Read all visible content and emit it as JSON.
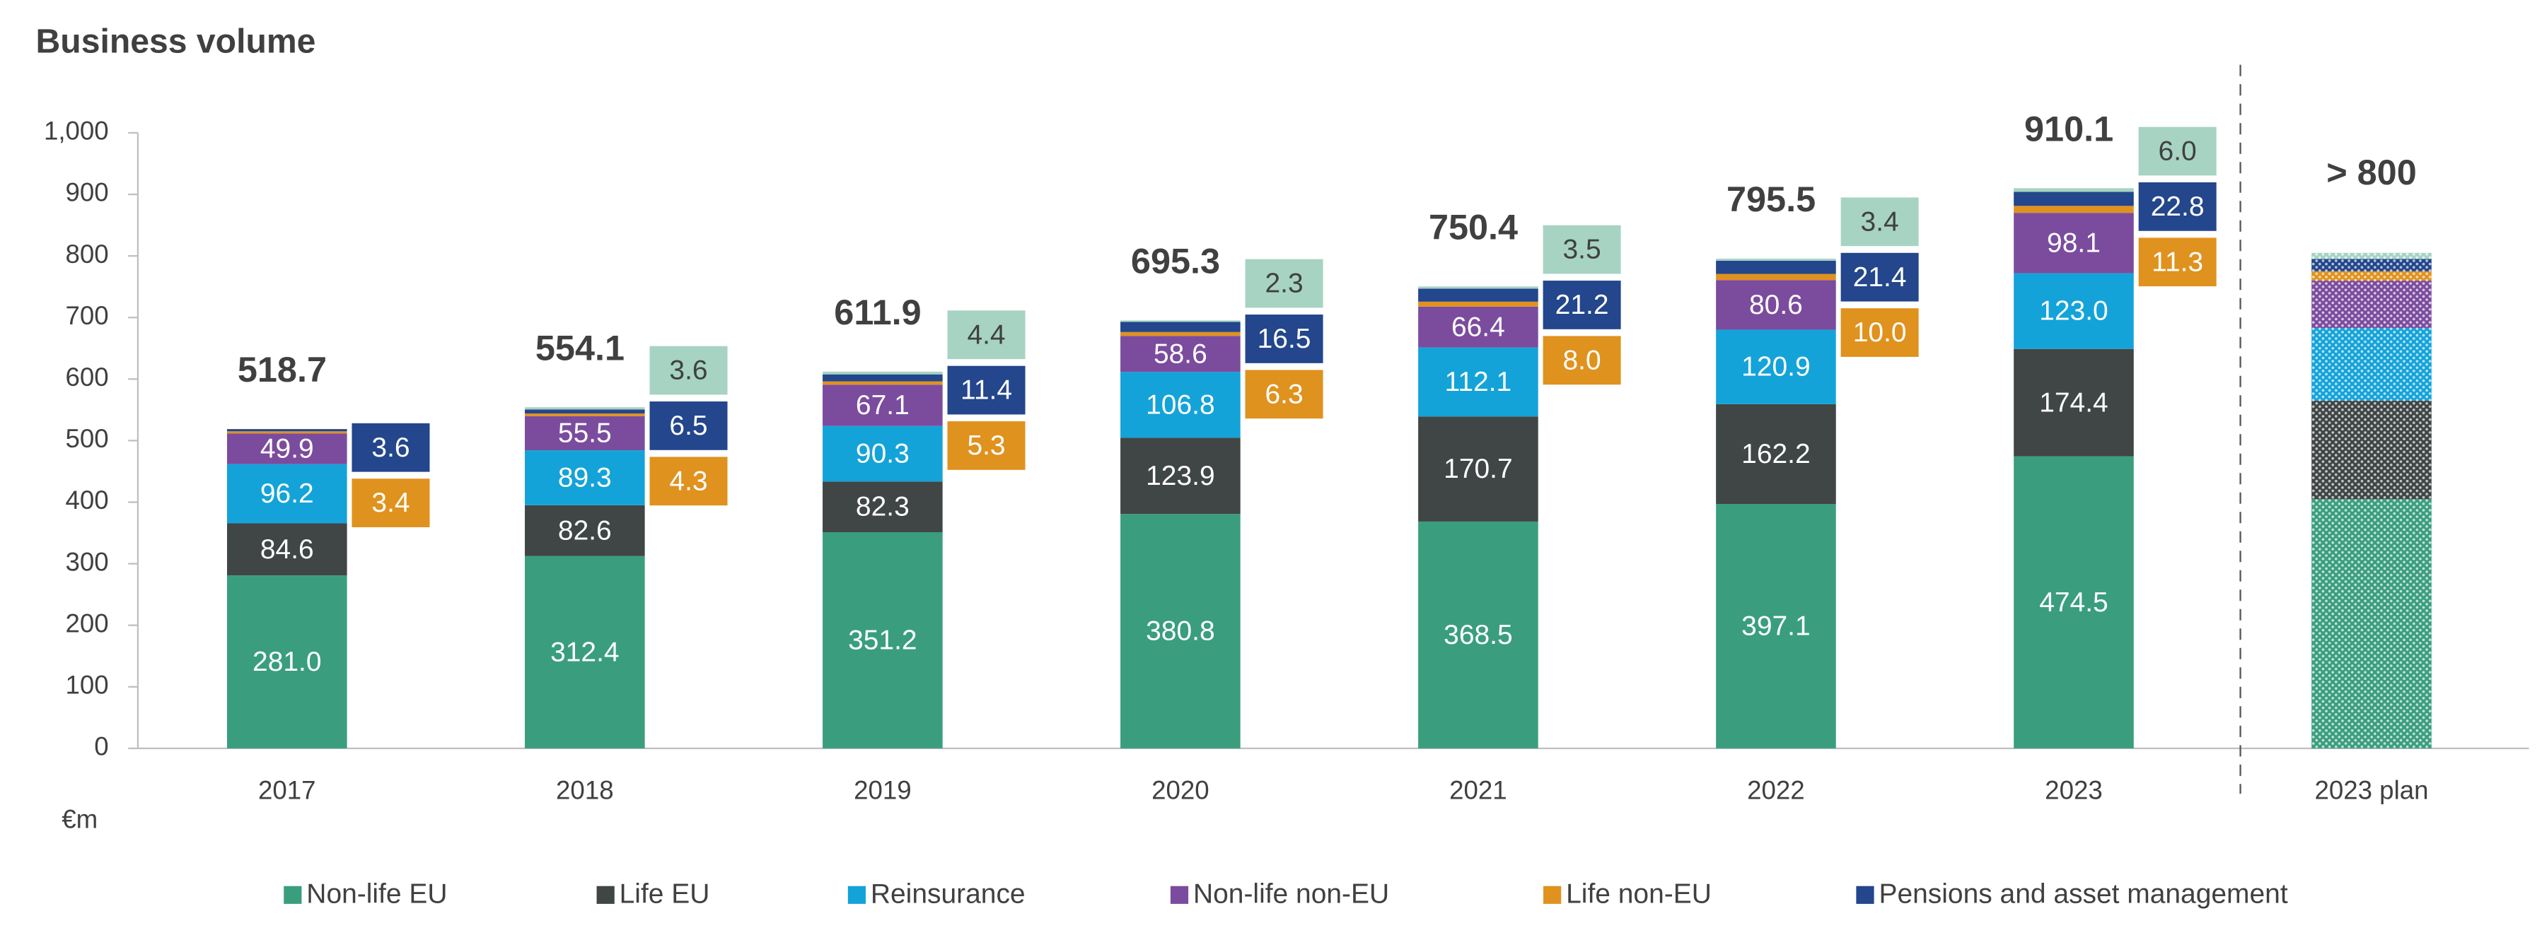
{
  "chart_data": {
    "type": "stacked_bar",
    "title": "Business volume",
    "y_unit": "€m",
    "categories": [
      "2017",
      "2018",
      "2019",
      "2020",
      "2021",
      "2022",
      "2023",
      "2023 plan"
    ],
    "series": [
      {
        "name": "Non-life EU",
        "color": "#3a9e7e",
        "values": [
          281.0,
          312.4,
          351.2,
          380.8,
          368.5,
          397.1,
          474.5,
          405
        ],
        "value_labels": [
          "281.0",
          "312.4",
          "351.2",
          "380.8",
          "368.5",
          "397.1",
          "474.5",
          null
        ]
      },
      {
        "name": "Life EU",
        "color": "#404545",
        "values": [
          84.6,
          82.6,
          82.3,
          123.9,
          170.7,
          162.2,
          174.4,
          160
        ],
        "value_labels": [
          "84.6",
          "82.6",
          "82.3",
          "123.9",
          "170.7",
          "162.2",
          "174.4",
          null
        ]
      },
      {
        "name": "Reinsurance",
        "color": "#14a3d9",
        "values": [
          96.2,
          89.3,
          90.3,
          106.8,
          112.1,
          120.9,
          123.0,
          118
        ],
        "value_labels": [
          "96.2",
          "89.3",
          "90.3",
          "106.8",
          "112.1",
          "120.9",
          "123.0",
          null
        ]
      },
      {
        "name": "Non-life non-EU",
        "color": "#7b4c9e",
        "values": [
          49.9,
          55.5,
          67.1,
          58.6,
          66.4,
          80.6,
          98.1,
          77
        ],
        "value_labels": [
          "49.9",
          "55.5",
          "67.1",
          "58.6",
          "66.4",
          "80.6",
          "98.1",
          null
        ]
      },
      {
        "name": "Life non-EU",
        "color": "#e0921e",
        "values": [
          3.4,
          4.3,
          5.3,
          6.3,
          8.0,
          10.0,
          11.3,
          15
        ],
        "value_labels": [
          "3.4",
          "4.3",
          "5.3",
          "6.3",
          "8.0",
          "10.0",
          "11.3",
          null
        ]
      },
      {
        "name": "Pensions and asset management",
        "color": "#23468c",
        "values": [
          3.6,
          6.5,
          11.4,
          16.5,
          21.2,
          21.4,
          22.8,
          20
        ],
        "value_labels": [
          "3.6",
          "6.5",
          "11.4",
          "16.5",
          "21.2",
          "21.4",
          "22.8",
          null
        ]
      },
      {
        "color": "#a7d3c3",
        "values": [
          null,
          3.6,
          4.4,
          2.3,
          3.5,
          3.4,
          6.0,
          10
        ],
        "value_labels": [
          null,
          "3.6",
          "4.4",
          "2.3",
          "3.5",
          "3.4",
          "6.0",
          null
        ]
      }
    ],
    "totals": [
      518.7,
      554.1,
      611.9,
      695.3,
      750.4,
      795.5,
      910.1,
      null
    ],
    "plan_label": "> 800",
    "ylim": [
      0,
      1000
    ],
    "yticks": [
      0,
      100,
      200,
      300,
      400,
      500,
      600,
      700,
      800,
      900,
      {
        "value": 1000,
        "label": "1,000"
      }
    ]
  }
}
